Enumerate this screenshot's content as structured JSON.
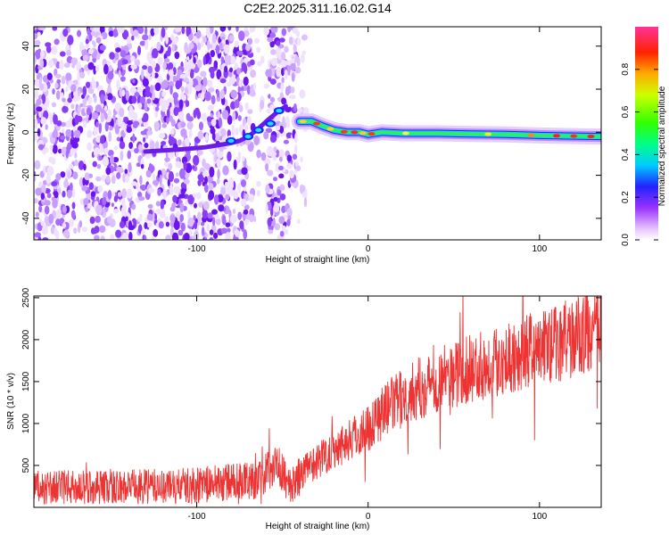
{
  "title": "C2E2.2025.311.16.02.G14",
  "chart_data": [
    {
      "type": "heatmap",
      "name": "spectrogram",
      "xlabel": "Height of straight line (km)",
      "ylabel": "Frequency (Hz)",
      "xlim": [
        -195,
        136
      ],
      "ylim": [
        -50,
        49
      ],
      "xticks": [
        -100,
        0,
        100
      ],
      "xtick_labels": [
        "-100",
        "0",
        "100"
      ],
      "yticks": [
        -40,
        -20,
        0,
        20,
        40
      ],
      "ytick_labels": [
        "-40",
        "-20",
        "0",
        "20",
        "40"
      ],
      "ridge": [
        {
          "x": -130,
          "y": -9
        },
        {
          "x": -110,
          "y": -8
        },
        {
          "x": -95,
          "y": -7
        },
        {
          "x": -80,
          "y": -5
        },
        {
          "x": -75,
          "y": -4
        },
        {
          "x": -70,
          "y": -2
        },
        {
          "x": -65,
          "y": 1
        },
        {
          "x": -58,
          "y": 6
        },
        {
          "x": -52,
          "y": 10
        },
        {
          "x": -48,
          "y": 12
        },
        {
          "x": -40,
          "y": 5
        },
        {
          "x": -33,
          "y": 5
        },
        {
          "x": -27,
          "y": 3
        },
        {
          "x": -20,
          "y": 1
        },
        {
          "x": -12,
          "y": 0
        },
        {
          "x": -5,
          "y": 0
        },
        {
          "x": 0,
          "y": -1
        },
        {
          "x": 8,
          "y": 0
        },
        {
          "x": 20,
          "y": -0.5
        },
        {
          "x": 40,
          "y": -0.5
        },
        {
          "x": 60,
          "y": -0.8
        },
        {
          "x": 80,
          "y": -1
        },
        {
          "x": 100,
          "y": -1.5
        },
        {
          "x": 120,
          "y": -1.8
        },
        {
          "x": 136,
          "y": -2
        }
      ],
      "colorbar": {
        "label": "Normalized spectral amplitude",
        "range": [
          0.0,
          1.0
        ],
        "ticks": [
          0.0,
          0.2,
          0.4,
          0.6,
          0.8
        ],
        "tick_labels": [
          "0.0",
          "0.2",
          "0.4",
          "0.6",
          "0.8"
        ]
      }
    },
    {
      "type": "line",
      "name": "snr",
      "xlabel": "Height of straight line (km)",
      "ylabel": "SNR (10 * v/v)",
      "xlim": [
        -195,
        136
      ],
      "ylim": [
        0,
        2520
      ],
      "xticks": [
        -100,
        0,
        100
      ],
      "xtick_labels": [
        "-100",
        "0",
        "100"
      ],
      "yticks": [
        500,
        1000,
        1500,
        2000,
        2500
      ],
      "ytick_labels": [
        "500",
        "1000",
        "1500",
        "2000",
        "2500"
      ],
      "series": [
        {
          "name": "SNR",
          "color": "#ee3333",
          "x": [
            -195,
            -160,
            -120,
            -90,
            -75,
            -62,
            -55,
            -45,
            -38,
            -30,
            -20,
            -10,
            0,
            10,
            20,
            30,
            45,
            60,
            80,
            100,
            120,
            136
          ],
          "y": [
            230,
            240,
            250,
            280,
            320,
            330,
            560,
            240,
            420,
            550,
            700,
            820,
            950,
            1170,
            1300,
            1420,
            1550,
            1650,
            1780,
            1900,
            2020,
            2150
          ]
        }
      ]
    }
  ],
  "colors": {
    "axis": "#000000",
    "snr_line": "#ee3333",
    "noise": "#7b2ff7"
  }
}
